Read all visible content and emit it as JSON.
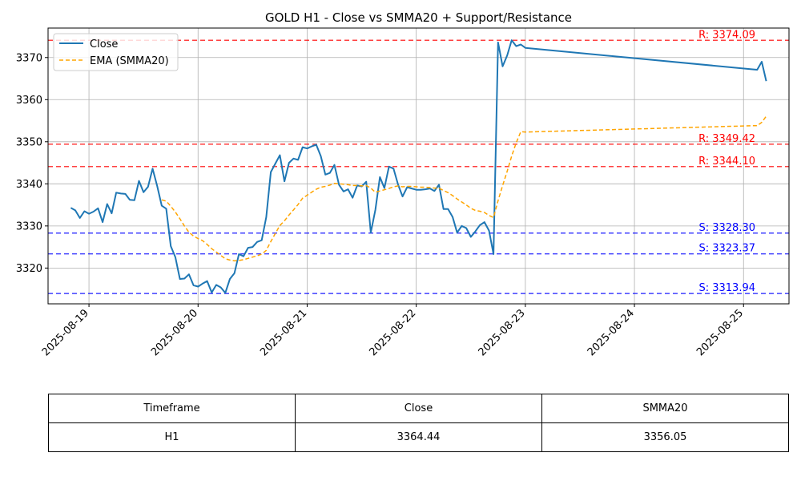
{
  "chart_data": {
    "type": "line",
    "title": "GOLD H1 - Close vs SMMA20 + Support/Resistance",
    "xlabel": "",
    "ylabel": "",
    "xlim": [
      "2025-08-18T15:00",
      "2025-08-25T10:00"
    ],
    "ylim": [
      3311.5,
      3377.0
    ],
    "xticks": [
      "2025-08-19",
      "2025-08-20",
      "2025-08-21",
      "2025-08-22",
      "2025-08-23",
      "2025-08-24",
      "2025-08-25"
    ],
    "yticks": [
      3320,
      3330,
      3340,
      3350,
      3360,
      3370
    ],
    "grid": true,
    "legend": {
      "placement": "upper-left",
      "entries": [
        "Close",
        "EMA (SMMA20)"
      ]
    },
    "series": [
      {
        "name": "Close",
        "color": "#1f77b4",
        "style": "solid",
        "points": [
          [
            "2025-08-18T20:00",
            3334.3
          ],
          [
            "2025-08-18T21:00",
            3333.7
          ],
          [
            "2025-08-18T22:00",
            3331.9
          ],
          [
            "2025-08-18T23:00",
            3333.5
          ],
          [
            "2025-08-19T00:00",
            3332.9
          ],
          [
            "2025-08-19T01:00",
            3333.4
          ],
          [
            "2025-08-19T02:00",
            3334.2
          ],
          [
            "2025-08-19T03:00",
            3330.9
          ],
          [
            "2025-08-19T04:00",
            3335.2
          ],
          [
            "2025-08-19T05:00",
            3333.0
          ],
          [
            "2025-08-19T06:00",
            3337.9
          ],
          [
            "2025-08-19T07:00",
            3337.7
          ],
          [
            "2025-08-19T08:00",
            3337.6
          ],
          [
            "2025-08-19T09:00",
            3336.2
          ],
          [
            "2025-08-19T10:00",
            3336.1
          ],
          [
            "2025-08-19T11:00",
            3340.7
          ],
          [
            "2025-08-19T12:00",
            3338.0
          ],
          [
            "2025-08-19T13:00",
            3339.3
          ],
          [
            "2025-08-19T14:00",
            3343.6
          ],
          [
            "2025-08-19T15:00",
            3339.5
          ],
          [
            "2025-08-19T16:00",
            3334.8
          ],
          [
            "2025-08-19T17:00",
            3334.1
          ],
          [
            "2025-08-19T18:00",
            3325.2
          ],
          [
            "2025-08-19T19:00",
            3322.6
          ],
          [
            "2025-08-19T20:00",
            3317.4
          ],
          [
            "2025-08-19T21:00",
            3317.5
          ],
          [
            "2025-08-19T22:00",
            3318.5
          ],
          [
            "2025-08-19T23:00",
            3315.9
          ],
          [
            "2025-08-20T00:00",
            3315.6
          ],
          [
            "2025-08-20T01:00",
            3316.3
          ],
          [
            "2025-08-20T02:00",
            3316.9
          ],
          [
            "2025-08-20T03:00",
            3314.2
          ],
          [
            "2025-08-20T04:00",
            3316.0
          ],
          [
            "2025-08-20T05:00",
            3315.4
          ],
          [
            "2025-08-20T06:00",
            3314.1
          ],
          [
            "2025-08-20T07:00",
            3317.4
          ],
          [
            "2025-08-20T08:00",
            3318.8
          ],
          [
            "2025-08-20T09:00",
            3323.3
          ],
          [
            "2025-08-20T10:00",
            3322.8
          ],
          [
            "2025-08-20T11:00",
            3324.8
          ],
          [
            "2025-08-20T12:00",
            3325.0
          ],
          [
            "2025-08-20T13:00",
            3326.2
          ],
          [
            "2025-08-20T14:00",
            3326.6
          ],
          [
            "2025-08-20T15:00",
            3332.1
          ],
          [
            "2025-08-20T16:00",
            3342.8
          ],
          [
            "2025-08-20T17:00",
            3344.8
          ],
          [
            "2025-08-20T18:00",
            3346.8
          ],
          [
            "2025-08-20T19:00",
            3340.6
          ],
          [
            "2025-08-20T20:00",
            3345.0
          ],
          [
            "2025-08-20T21:00",
            3346.0
          ],
          [
            "2025-08-20T22:00",
            3345.7
          ],
          [
            "2025-08-20T23:00",
            3348.7
          ],
          [
            "2025-08-21T00:00",
            3348.4
          ],
          [
            "2025-08-21T01:00",
            3348.9
          ],
          [
            "2025-08-21T02:00",
            3349.3
          ],
          [
            "2025-08-21T03:00",
            3346.6
          ],
          [
            "2025-08-21T04:00",
            3342.2
          ],
          [
            "2025-08-21T05:00",
            3342.6
          ],
          [
            "2025-08-21T06:00",
            3344.5
          ],
          [
            "2025-08-21T07:00",
            3339.8
          ],
          [
            "2025-08-21T08:00",
            3338.2
          ],
          [
            "2025-08-21T09:00",
            3338.7
          ],
          [
            "2025-08-21T10:00",
            3336.7
          ],
          [
            "2025-08-21T11:00",
            3339.6
          ],
          [
            "2025-08-21T12:00",
            3339.4
          ],
          [
            "2025-08-21T13:00",
            3340.5
          ],
          [
            "2025-08-21T14:00",
            3328.4
          ],
          [
            "2025-08-21T15:00",
            3333.8
          ],
          [
            "2025-08-21T16:00",
            3341.6
          ],
          [
            "2025-08-21T17:00",
            3339.0
          ],
          [
            "2025-08-21T18:00",
            3344.1
          ],
          [
            "2025-08-21T19:00",
            3343.6
          ],
          [
            "2025-08-21T20:00",
            3339.8
          ],
          [
            "2025-08-21T21:00",
            3337.0
          ],
          [
            "2025-08-21T22:00",
            3339.2
          ],
          [
            "2025-08-21T23:00",
            3338.9
          ],
          [
            "2025-08-22T00:00",
            3338.6
          ],
          [
            "2025-08-22T01:00",
            3338.6
          ],
          [
            "2025-08-22T02:00",
            3338.7
          ],
          [
            "2025-08-22T03:00",
            3338.9
          ],
          [
            "2025-08-22T04:00",
            3338.3
          ],
          [
            "2025-08-22T05:00",
            3339.8
          ],
          [
            "2025-08-22T06:00",
            3334.0
          ],
          [
            "2025-08-22T07:00",
            3334.0
          ],
          [
            "2025-08-22T08:00",
            3332.1
          ],
          [
            "2025-08-22T09:00",
            3328.4
          ],
          [
            "2025-08-22T10:00",
            3330.0
          ],
          [
            "2025-08-22T11:00",
            3329.5
          ],
          [
            "2025-08-22T12:00",
            3327.4
          ],
          [
            "2025-08-22T13:00",
            3328.7
          ],
          [
            "2025-08-22T14:00",
            3330.2
          ],
          [
            "2025-08-22T15:00",
            3330.9
          ],
          [
            "2025-08-22T16:00",
            3328.9
          ],
          [
            "2025-08-22T17:00",
            3323.3
          ],
          [
            "2025-08-22T18:00",
            3373.6
          ],
          [
            "2025-08-22T19:00",
            3367.9
          ],
          [
            "2025-08-22T20:00",
            3370.5
          ],
          [
            "2025-08-22T21:00",
            3374.1
          ],
          [
            "2025-08-22T22:00",
            3372.7
          ],
          [
            "2025-08-22T23:00",
            3373.1
          ],
          [
            "2025-08-23T00:00",
            3372.3
          ],
          [
            "2025-08-25T02:00",
            3367.2
          ],
          [
            "2025-08-25T03:00",
            3367.1
          ],
          [
            "2025-08-25T04:00",
            3369.0
          ],
          [
            "2025-08-25T05:00",
            3364.4
          ]
        ]
      },
      {
        "name": "EMA (SMMA20)",
        "color": "#ffa500",
        "style": "dashed",
        "points": [
          [
            "2025-08-19T16:00",
            3336.2
          ],
          [
            "2025-08-19T17:00",
            3335.9
          ],
          [
            "2025-08-19T18:00",
            3334.7
          ],
          [
            "2025-08-19T19:00",
            3333.3
          ],
          [
            "2025-08-19T20:00",
            3331.7
          ],
          [
            "2025-08-19T21:00",
            3330.0
          ],
          [
            "2025-08-19T22:00",
            3328.5
          ],
          [
            "2025-08-19T23:00",
            3327.6
          ],
          [
            "2025-08-20T00:00",
            3327.0
          ],
          [
            "2025-08-20T01:00",
            3326.5
          ],
          [
            "2025-08-20T02:00",
            3325.6
          ],
          [
            "2025-08-20T03:00",
            3324.6
          ],
          [
            "2025-08-20T04:00",
            3323.8
          ],
          [
            "2025-08-20T05:00",
            3323.0
          ],
          [
            "2025-08-20T06:00",
            3322.2
          ],
          [
            "2025-08-20T07:00",
            3321.9
          ],
          [
            "2025-08-20T08:00",
            3321.7
          ],
          [
            "2025-08-20T09:00",
            3321.8
          ],
          [
            "2025-08-20T10:00",
            3322.0
          ],
          [
            "2025-08-20T11:00",
            3322.3
          ],
          [
            "2025-08-20T12:00",
            3322.6
          ],
          [
            "2025-08-20T13:00",
            3322.9
          ],
          [
            "2025-08-20T14:00",
            3323.3
          ],
          [
            "2025-08-20T15:00",
            3324.2
          ],
          [
            "2025-08-20T16:00",
            3326.3
          ],
          [
            "2025-08-20T17:00",
            3328.2
          ],
          [
            "2025-08-20T18:00",
            3330.1
          ],
          [
            "2025-08-20T19:00",
            3331.2
          ],
          [
            "2025-08-20T20:00",
            3332.6
          ],
          [
            "2025-08-20T21:00",
            3333.8
          ],
          [
            "2025-08-20T22:00",
            3335.1
          ],
          [
            "2025-08-20T23:00",
            3336.6
          ],
          [
            "2025-08-21T00:00",
            3337.3
          ],
          [
            "2025-08-21T01:00",
            3338.0
          ],
          [
            "2025-08-21T02:00",
            3338.7
          ],
          [
            "2025-08-21T03:00",
            3339.2
          ],
          [
            "2025-08-21T04:00",
            3339.4
          ],
          [
            "2025-08-21T05:00",
            3339.7
          ],
          [
            "2025-08-21T06:00",
            3340.1
          ],
          [
            "2025-08-21T07:00",
            3340.0
          ],
          [
            "2025-08-21T08:00",
            3339.9
          ],
          [
            "2025-08-21T09:00",
            3339.8
          ],
          [
            "2025-08-21T10:00",
            3339.6
          ],
          [
            "2025-08-21T11:00",
            3339.6
          ],
          [
            "2025-08-21T12:00",
            3339.5
          ],
          [
            "2025-08-21T13:00",
            3339.6
          ],
          [
            "2025-08-21T14:00",
            3339.0
          ],
          [
            "2025-08-21T15:00",
            3338.0
          ],
          [
            "2025-08-21T16:00",
            3338.3
          ],
          [
            "2025-08-21T17:00",
            3338.6
          ],
          [
            "2025-08-21T18:00",
            3338.9
          ],
          [
            "2025-08-21T19:00",
            3339.3
          ],
          [
            "2025-08-21T20:00",
            3339.5
          ],
          [
            "2025-08-21T21:00",
            3339.3
          ],
          [
            "2025-08-21T22:00",
            3339.4
          ],
          [
            "2025-08-21T23:00",
            3339.4
          ],
          [
            "2025-08-22T00:00",
            3339.3
          ],
          [
            "2025-08-22T01:00",
            3339.2
          ],
          [
            "2025-08-22T02:00",
            3339.2
          ],
          [
            "2025-08-22T03:00",
            3339.1
          ],
          [
            "2025-08-22T04:00",
            3339.0
          ],
          [
            "2025-08-22T05:00",
            3339.0
          ],
          [
            "2025-08-22T06:00",
            3338.4
          ],
          [
            "2025-08-22T07:00",
            3337.9
          ],
          [
            "2025-08-22T08:00",
            3337.2
          ],
          [
            "2025-08-22T09:00",
            3336.4
          ],
          [
            "2025-08-22T10:00",
            3335.7
          ],
          [
            "2025-08-22T11:00",
            3335.0
          ],
          [
            "2025-08-22T12:00",
            3334.2
          ],
          [
            "2025-08-22T13:00",
            3333.7
          ],
          [
            "2025-08-22T14:00",
            3333.5
          ],
          [
            "2025-08-22T15:00",
            3333.2
          ],
          [
            "2025-08-22T16:00",
            3332.5
          ],
          [
            "2025-08-22T17:00",
            3332.0
          ],
          [
            "2025-08-22T18:00",
            3336.0
          ],
          [
            "2025-08-22T19:00",
            3339.6
          ],
          [
            "2025-08-22T20:00",
            3343.0
          ],
          [
            "2025-08-22T21:00",
            3346.6
          ],
          [
            "2025-08-22T22:00",
            3349.8
          ],
          [
            "2025-08-22T23:00",
            3352.4
          ],
          [
            "2025-08-23T00:00",
            3352.3
          ],
          [
            "2025-08-25T02:00",
            3353.8
          ],
          [
            "2025-08-25T03:00",
            3353.8
          ],
          [
            "2025-08-25T04:00",
            3354.6
          ],
          [
            "2025-08-25T05:00",
            3356.05
          ]
        ]
      }
    ],
    "levels": [
      {
        "kind": "resistance",
        "value": 3374.09,
        "label": "R: 3374.09",
        "color": "#ff0000"
      },
      {
        "kind": "resistance",
        "value": 3349.42,
        "label": "R: 3349.42",
        "color": "#ff0000"
      },
      {
        "kind": "resistance",
        "value": 3344.1,
        "label": "R: 3344.10",
        "color": "#ff0000"
      },
      {
        "kind": "support",
        "value": 3328.3,
        "label": "S: 3328.30",
        "color": "#0000ff"
      },
      {
        "kind": "support",
        "value": 3323.37,
        "label": "S: 3323.37",
        "color": "#0000ff"
      },
      {
        "kind": "support",
        "value": 3313.94,
        "label": "S: 3313.94",
        "color": "#0000ff"
      }
    ]
  },
  "table": {
    "headers": [
      "Timeframe",
      "Close",
      "SMMA20"
    ],
    "rows": [
      [
        "H1",
        "3364.44",
        "3356.05"
      ]
    ]
  }
}
